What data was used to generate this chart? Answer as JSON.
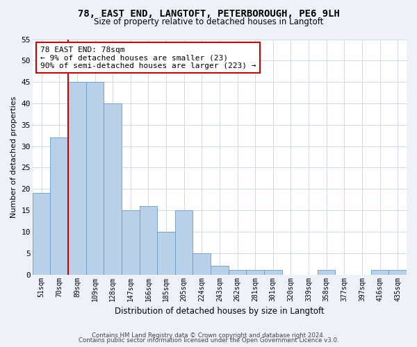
{
  "title_line1": "78, EAST END, LANGTOFT, PETERBOROUGH, PE6 9LH",
  "title_line2": "Size of property relative to detached houses in Langtoft",
  "xlabel": "Distribution of detached houses by size in Langtoft",
  "ylabel": "Number of detached properties",
  "categories": [
    "51sqm",
    "70sqm",
    "89sqm",
    "109sqm",
    "128sqm",
    "147sqm",
    "166sqm",
    "185sqm",
    "205sqm",
    "224sqm",
    "243sqm",
    "262sqm",
    "281sqm",
    "301sqm",
    "320sqm",
    "339sqm",
    "358sqm",
    "377sqm",
    "397sqm",
    "416sqm",
    "435sqm"
  ],
  "values": [
    19,
    32,
    45,
    45,
    40,
    15,
    16,
    10,
    15,
    5,
    2,
    1,
    1,
    1,
    0,
    0,
    1,
    0,
    0,
    1,
    1
  ],
  "bar_color": "#b8d0e8",
  "bar_edge_color": "#6699cc",
  "vline_color": "#cc0000",
  "annotation_text": "78 EAST END: 78sqm\n← 9% of detached houses are smaller (23)\n90% of semi-detached houses are larger (223) →",
  "annotation_box_color": "#ffffff",
  "annotation_box_edge_color": "#cc0000",
  "ylim": [
    0,
    55
  ],
  "yticks": [
    0,
    5,
    10,
    15,
    20,
    25,
    30,
    35,
    40,
    45,
    50,
    55
  ],
  "footer_line1": "Contains HM Land Registry data © Crown copyright and database right 2024.",
  "footer_line2": "Contains public sector information licensed under the Open Government Licence v3.0.",
  "background_color": "#eef2f8",
  "plot_bg_color": "#ffffff"
}
